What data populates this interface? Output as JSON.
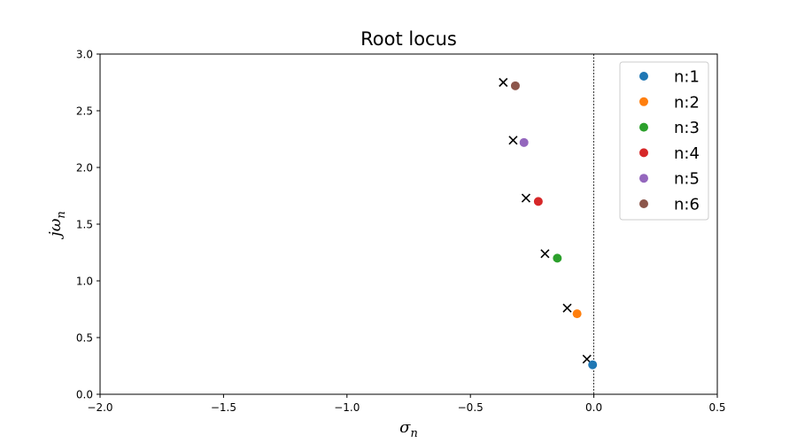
{
  "chart_data": {
    "type": "scatter",
    "title": "Root locus",
    "xlabel": {
      "base": "σ",
      "sub": "n"
    },
    "ylabel": {
      "base": "jω",
      "sub": "n"
    },
    "xlim": [
      -2.0,
      0.5
    ],
    "ylim": [
      0.0,
      3.0
    ],
    "xticks": [
      -2.0,
      -1.5,
      -1.0,
      -0.5,
      0.0,
      0.5
    ],
    "xtick_labels": [
      "−2.0",
      "−1.5",
      "−1.0",
      "−0.5",
      "0.0",
      "0.5"
    ],
    "yticks": [
      0.0,
      0.5,
      1.0,
      1.5,
      2.0,
      2.5,
      3.0
    ],
    "ytick_labels": [
      "0.0",
      "0.5",
      "1.0",
      "1.5",
      "2.0",
      "2.5",
      "3.0"
    ],
    "grid": false,
    "reference_line": {
      "x": 0.0,
      "style": "dashed"
    },
    "legend_position": "top-right",
    "series": [
      {
        "name": "n:1",
        "color": "#1f77b4",
        "x": -0.005,
        "y": 0.26
      },
      {
        "name": "n:2",
        "color": "#ff7f0e",
        "x": -0.068,
        "y": 0.71
      },
      {
        "name": "n:3",
        "color": "#2ca02c",
        "x": -0.148,
        "y": 1.2
      },
      {
        "name": "n:4",
        "color": "#d62728",
        "x": -0.225,
        "y": 1.7
      },
      {
        "name": "n:5",
        "color": "#9467bd",
        "x": -0.283,
        "y": 2.22
      },
      {
        "name": "n:6",
        "color": "#8c564b",
        "x": -0.318,
        "y": 2.72
      }
    ],
    "x_markers": [
      {
        "x": -0.028,
        "y": 0.31
      },
      {
        "x": -0.108,
        "y": 0.76
      },
      {
        "x": -0.198,
        "y": 1.24
      },
      {
        "x": -0.275,
        "y": 1.73
      },
      {
        "x": -0.327,
        "y": 2.24
      },
      {
        "x": -0.367,
        "y": 2.75
      }
    ]
  }
}
